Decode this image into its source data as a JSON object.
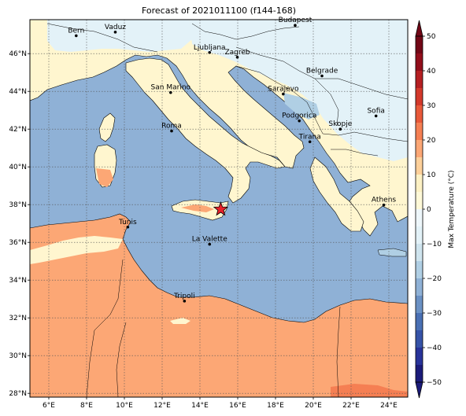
{
  "title": "Forecast of 2021011100 (f144-168)",
  "map": {
    "lon_range": [
      5,
      25
    ],
    "lat_range": [
      27.8,
      47.8
    ],
    "lon_ticks": [
      {
        "v": 6,
        "label": "6°E"
      },
      {
        "v": 8,
        "label": "8°E"
      },
      {
        "v": 10,
        "label": "10°E"
      },
      {
        "v": 12,
        "label": "12°E"
      },
      {
        "v": 14,
        "label": "14°E"
      },
      {
        "v": 16,
        "label": "16°E"
      },
      {
        "v": 18,
        "label": "18°E"
      },
      {
        "v": 20,
        "label": "20°E"
      },
      {
        "v": 22,
        "label": "22°E"
      },
      {
        "v": 24,
        "label": "24°E"
      }
    ],
    "lat_ticks": [
      {
        "v": 28,
        "label": "28°N"
      },
      {
        "v": 30,
        "label": "30°N"
      },
      {
        "v": 32,
        "label": "32°N"
      },
      {
        "v": 34,
        "label": "34°N"
      },
      {
        "v": 36,
        "label": "36°N"
      },
      {
        "v": 38,
        "label": "38°N"
      },
      {
        "v": 40,
        "label": "40°N"
      },
      {
        "v": 42,
        "label": "42°N"
      },
      {
        "v": 44,
        "label": "44°N"
      },
      {
        "v": 46,
        "label": "46°N"
      }
    ],
    "cities": [
      {
        "name": "Bern",
        "lon": 7.45,
        "lat": 46.95
      },
      {
        "name": "Vaduz",
        "lon": 9.52,
        "lat": 47.14
      },
      {
        "name": "Budapest",
        "lon": 19.04,
        "lat": 47.5
      },
      {
        "name": "Ljubljana",
        "lon": 14.51,
        "lat": 46.06
      },
      {
        "name": "Zagreb",
        "lon": 15.98,
        "lat": 45.81
      },
      {
        "name": "Belgrade",
        "lon": 20.46,
        "lat": 44.82
      },
      {
        "name": "San Marino",
        "lon": 12.45,
        "lat": 43.94
      },
      {
        "name": "Sarajevo",
        "lon": 18.41,
        "lat": 43.86
      },
      {
        "name": "Sofia",
        "lon": 23.32,
        "lat": 42.7
      },
      {
        "name": "Podgorica",
        "lon": 19.26,
        "lat": 42.44
      },
      {
        "name": "Skopje",
        "lon": 21.43,
        "lat": 42.0
      },
      {
        "name": "Roma",
        "lon": 12.5,
        "lat": 41.9
      },
      {
        "name": "Tirana",
        "lon": 19.82,
        "lat": 41.33
      },
      {
        "name": "Athens",
        "lon": 23.73,
        "lat": 37.98
      },
      {
        "name": "Tunis",
        "lon": 10.18,
        "lat": 36.81
      },
      {
        "name": "La Valette",
        "lon": 14.51,
        "lat": 35.9
      },
      {
        "name": "Tripoli",
        "lon": 13.18,
        "lat": 32.89
      }
    ],
    "star": {
      "lon": 15.1,
      "lat": 37.75
    }
  },
  "colorbar": {
    "label": "Max Temperature (°C)",
    "levels": [
      -50,
      -45,
      -40,
      -35,
      -30,
      -25,
      -20,
      -15,
      -10,
      -5,
      0,
      5,
      10,
      15,
      20,
      25,
      30,
      35,
      40,
      45,
      50
    ],
    "colors": [
      "#1b1b7a",
      "#28339a",
      "#3653a8",
      "#4a70b4",
      "#6b91c4",
      "#8fb1d6",
      "#b0cfe4",
      "#cfe4ee",
      "#e3f2f8",
      "#eef7fb",
      "#fff9d8",
      "#fdf1c4",
      "#fdd09a",
      "#fca775",
      "#f57f53",
      "#e8593a",
      "#d3392b",
      "#b51f22",
      "#920e1b",
      "#720716"
    ],
    "ticks": [
      {
        "v": -50,
        "label": "−50"
      },
      {
        "v": -40,
        "label": "−40"
      },
      {
        "v": -30,
        "label": "−30"
      },
      {
        "v": -20,
        "label": "−20"
      },
      {
        "v": -10,
        "label": "−10"
      },
      {
        "v": 0,
        "label": "0"
      },
      {
        "v": 10,
        "label": "10"
      },
      {
        "v": 20,
        "label": "20"
      },
      {
        "v": 30,
        "label": "30"
      },
      {
        "v": 40,
        "label": "40"
      },
      {
        "v": 50,
        "label": "50"
      }
    ],
    "colors_map": {
      "sea": "#8fb1d6",
      "cold": "#e3f2f8",
      "mild": "#fff6cf",
      "warm": "#fca775",
      "cool": "#b0cfe4"
    }
  }
}
